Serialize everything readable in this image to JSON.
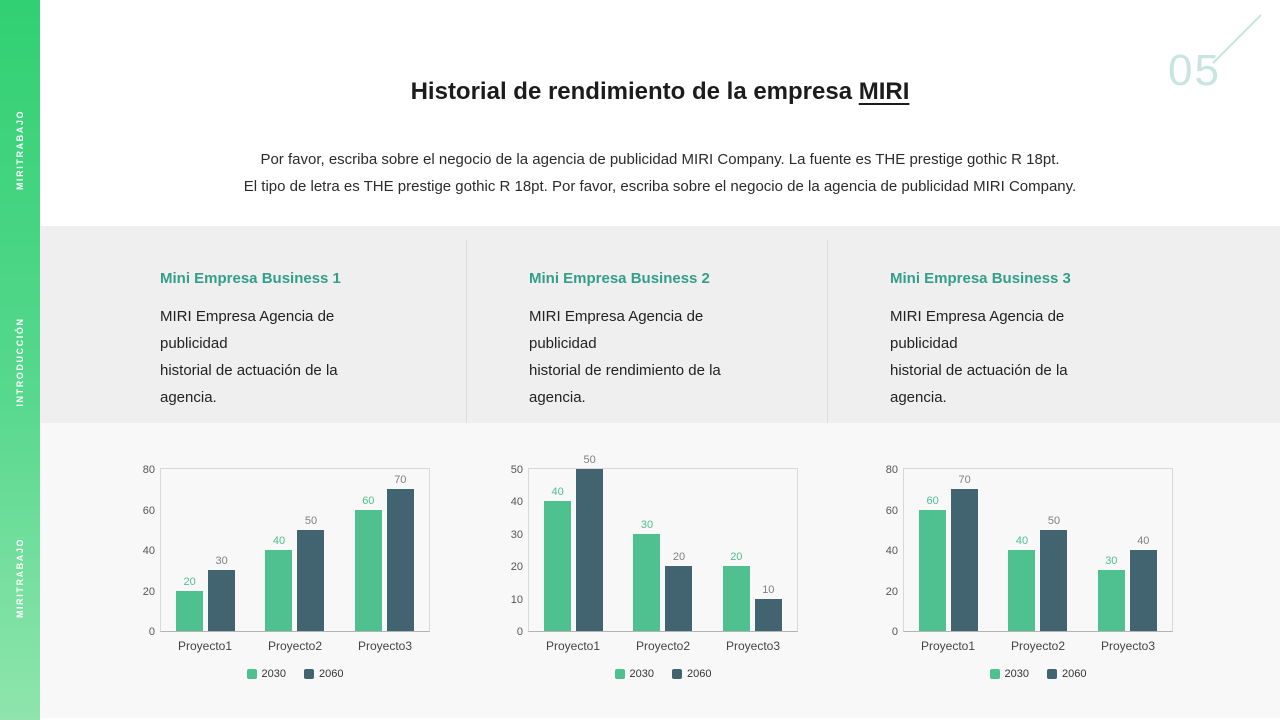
{
  "page_number": "05",
  "sidebar": {
    "labels": [
      "MIRITRABAJO",
      "INTRODUCCIÓN",
      "MIRITRABAJO"
    ]
  },
  "header": {
    "title_prefix": "Historial de rendimiento de la empresa ",
    "title_brand": "MIRI",
    "subtitle_line1": "Por favor, escriba sobre el negocio de la agencia de publicidad MIRI Company. La fuente es THE prestige gothic R 18pt.",
    "subtitle_line2": "El tipo de letra es THE prestige gothic R 18pt. Por favor, escriba sobre el negocio de la agencia de publicidad MIRI Company."
  },
  "cards": [
    {
      "heading": "Mini Empresa Business 1",
      "line1": "MIRI Empresa Agencia de publicidad",
      "line2": "historial de actuación de la agencia."
    },
    {
      "heading": "Mini Empresa Business 2",
      "line1": "MIRI Empresa Agencia de publicidad",
      "line2": "historial de rendimiento de la agencia."
    },
    {
      "heading": "Mini Empresa Business 3",
      "line1": "MIRI Empresa Agencia de publicidad",
      "line2": "historial de actuación de la agencia."
    }
  ],
  "colors": {
    "series_2030": "#4fc08f",
    "series_2060": "#426470",
    "heading_teal": "#339e8a",
    "sidebar_green_top": "#31d072",
    "sidebar_green_bottom": "#8fe5ad",
    "page_number": "#c8e5df"
  },
  "chart_data": [
    {
      "type": "bar",
      "categories": [
        "Proyecto1",
        "Proyecto2",
        "Proyecto3"
      ],
      "series": [
        {
          "name": "2030",
          "values": [
            20,
            40,
            60
          ]
        },
        {
          "name": "2060",
          "values": [
            30,
            50,
            70
          ]
        }
      ],
      "ylim": [
        0,
        80
      ],
      "yticks": [
        0,
        20,
        40,
        60,
        80
      ],
      "grid": false,
      "legend_position": "bottom"
    },
    {
      "type": "bar",
      "categories": [
        "Proyecto1",
        "Proyecto2",
        "Proyecto3"
      ],
      "series": [
        {
          "name": "2030",
          "values": [
            40,
            30,
            20
          ]
        },
        {
          "name": "2060",
          "values": [
            50,
            20,
            10
          ]
        }
      ],
      "ylim": [
        0,
        50
      ],
      "yticks": [
        0,
        10,
        20,
        30,
        40,
        50
      ],
      "grid": false,
      "legend_position": "bottom"
    },
    {
      "type": "bar",
      "categories": [
        "Proyecto1",
        "Proyecto2",
        "Proyecto3"
      ],
      "series": [
        {
          "name": "2030",
          "values": [
            60,
            40,
            30
          ]
        },
        {
          "name": "2060",
          "values": [
            70,
            50,
            40
          ]
        }
      ],
      "ylim": [
        0,
        80
      ],
      "yticks": [
        0,
        20,
        40,
        60,
        80
      ],
      "grid": false,
      "legend_position": "bottom"
    }
  ]
}
